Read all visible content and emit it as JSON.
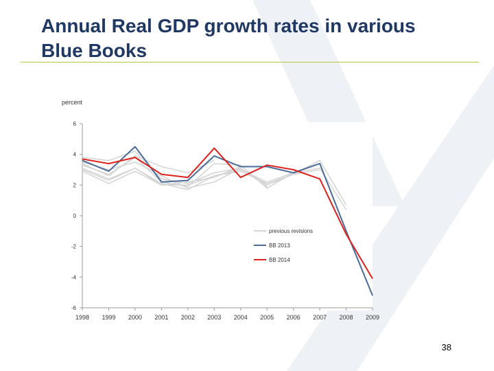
{
  "slide": {
    "title": "Annual Real GDP growth rates in various Blue Books",
    "page_number": "38"
  },
  "colors": {
    "title": "#1f3864",
    "rule": "#b5c63a",
    "watermark": "#eef1f5",
    "previous_revisions": "#d4d4d4",
    "bb2013": "#4a6b9a",
    "bb2014": "#e0201b"
  },
  "chart_data": {
    "type": "line",
    "title": "",
    "xlabel": "",
    "ylabel": "percent",
    "x": [
      "1998",
      "1999",
      "2000",
      "2001",
      "2002",
      "2003",
      "2004",
      "2005",
      "2006",
      "2007",
      "2008",
      "2009"
    ],
    "ylim": [
      -6,
      6
    ],
    "yticks": [
      "6",
      "4",
      "2",
      "0",
      "-2",
      "-4",
      "-6"
    ],
    "grid": false,
    "legend_position": "lower-right",
    "series": [
      {
        "name": "BB 2013",
        "color": "#4a6b9a",
        "values": [
          3.6,
          2.9,
          4.5,
          2.2,
          2.3,
          3.9,
          3.2,
          3.2,
          2.8,
          3.4,
          -1.0,
          -5.2
        ]
      },
      {
        "name": "BB 2014",
        "color": "#e0201b",
        "values": [
          3.7,
          3.4,
          3.8,
          2.7,
          2.5,
          4.4,
          2.5,
          3.3,
          3.0,
          2.4,
          -1.2,
          -4.1
        ]
      }
    ],
    "previous_revisions": {
      "name": "previous revisions",
      "color": "#d4d4d4",
      "series": [
        [
          3.8,
          3.6,
          4.2,
          2.4,
          2.1,
          2.8,
          3.1,
          2.0,
          2.7,
          3.6,
          0.7
        ],
        [
          3.3,
          2.7,
          3.8,
          2.2,
          1.9,
          3.4,
          3.3,
          1.8,
          2.8,
          3.1,
          0.4
        ],
        [
          3.1,
          2.4,
          3.1,
          2.1,
          1.7,
          2.6,
          2.9,
          2.1,
          2.7,
          3.0
        ],
        [
          2.9,
          2.1,
          2.9,
          2.0,
          2.0,
          2.6,
          3.0,
          2.2,
          2.8
        ],
        [
          3.5,
          3.0,
          3.5,
          2.6,
          1.8,
          2.2,
          3.1,
          1.9
        ],
        [
          3.0,
          2.3,
          3.1,
          2.0,
          2.2,
          2.5,
          3.2
        ],
        [
          3.4,
          2.6,
          3.9,
          3.2,
          2.8,
          3.6
        ]
      ]
    }
  }
}
